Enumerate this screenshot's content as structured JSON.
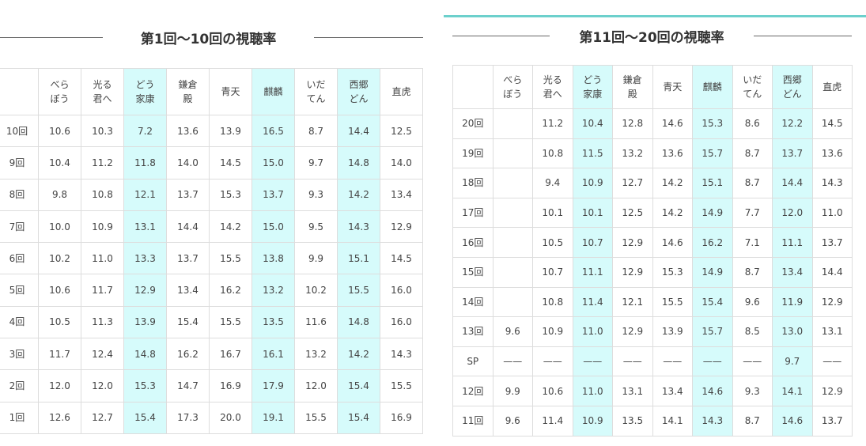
{
  "left": {
    "title": "第1回～10回の視聴率",
    "header": [
      null,
      "べら\nぼう",
      "光る\n君へ",
      "どう\n家康",
      "鎌倉\n殿",
      "青天",
      "麒麟",
      "いだ\nてん",
      "西郷\nどん",
      "直虎"
    ],
    "rows": [
      [
        "10回",
        "10.6",
        "10.3",
        "7.2",
        "13.6",
        "13.9",
        "16.5",
        "8.7",
        "14.4",
        "12.5"
      ],
      [
        "9回",
        "10.4",
        "11.2",
        "11.8",
        "14.0",
        "14.5",
        "15.0",
        "9.7",
        "14.8",
        "14.0"
      ],
      [
        "8回",
        "9.8",
        "10.8",
        "12.1",
        "13.7",
        "15.3",
        "13.7",
        "9.3",
        "14.2",
        "13.4"
      ],
      [
        "7回",
        "10.0",
        "10.9",
        "13.1",
        "14.4",
        "14.2",
        "15.0",
        "9.5",
        "14.3",
        "12.9"
      ],
      [
        "6回",
        "10.2",
        "11.0",
        "13.3",
        "13.7",
        "15.5",
        "13.8",
        "9.9",
        "15.1",
        "14.5"
      ],
      [
        "5回",
        "10.6",
        "11.7",
        "12.9",
        "13.4",
        "16.2",
        "13.2",
        "10.2",
        "15.5",
        "16.0"
      ],
      [
        "4回",
        "10.5",
        "11.3",
        "13.9",
        "15.4",
        "15.5",
        "13.5",
        "11.6",
        "14.8",
        "16.0"
      ],
      [
        "3回",
        "11.7",
        "12.4",
        "14.8",
        "16.2",
        "16.7",
        "16.1",
        "13.2",
        "14.2",
        "14.3"
      ],
      [
        "2回",
        "12.0",
        "12.0",
        "15.3",
        "14.7",
        "16.9",
        "17.9",
        "12.0",
        "15.4",
        "15.5"
      ],
      [
        "1回",
        "12.6",
        "12.7",
        "15.4",
        "17.3",
        "20.0",
        "19.1",
        "15.5",
        "15.4",
        "16.9"
      ]
    ]
  },
  "right": {
    "title": "第11回～20回の視聴率",
    "header": [
      null,
      "べら\nぼう",
      "光る\n君へ",
      "どう\n家康",
      "鎌倉\n殿",
      "青天",
      "麒麟",
      "いだ\nてん",
      "西郷\nどん",
      "直虎"
    ],
    "rows": [
      [
        "20回",
        null,
        "11.2",
        "10.4",
        "12.8",
        "14.6",
        "15.3",
        "8.6",
        "12.2",
        "14.5"
      ],
      [
        "19回",
        null,
        "10.8",
        "11.5",
        "13.2",
        "13.6",
        "15.7",
        "8.7",
        "13.7",
        "13.6"
      ],
      [
        "18回",
        null,
        "9.4",
        "10.9",
        "12.7",
        "14.2",
        "15.1",
        "8.7",
        "14.4",
        "14.3"
      ],
      [
        "17回",
        null,
        "10.1",
        "10.1",
        "12.5",
        "14.2",
        "14.9",
        "7.7",
        "12.0",
        "11.0"
      ],
      [
        "16回",
        null,
        "10.5",
        "10.7",
        "12.9",
        "14.6",
        "16.2",
        "7.1",
        "11.1",
        "13.7"
      ],
      [
        "15回",
        null,
        "10.7",
        "11.1",
        "12.9",
        "15.3",
        "14.9",
        "8.7",
        "13.4",
        "14.4"
      ],
      [
        "14回",
        null,
        "10.8",
        "11.4",
        "12.1",
        "15.5",
        "15.4",
        "9.6",
        "11.9",
        "12.9"
      ],
      [
        "13回",
        "9.6",
        "10.9",
        "11.0",
        "12.9",
        "13.9",
        "15.7",
        "8.5",
        "13.0",
        "13.1"
      ],
      [
        "SP",
        "——",
        "——",
        "——",
        "——",
        "——",
        "——",
        "——",
        "9.7",
        "——"
      ],
      [
        "12回",
        "9.9",
        "10.6",
        "11.0",
        "13.1",
        "13.4",
        "14.6",
        "9.3",
        "14.1",
        "12.9"
      ],
      [
        "11回",
        "9.6",
        "11.4",
        "10.9",
        "13.5",
        "14.1",
        "14.3",
        "8.7",
        "14.6",
        "13.7"
      ]
    ]
  }
}
